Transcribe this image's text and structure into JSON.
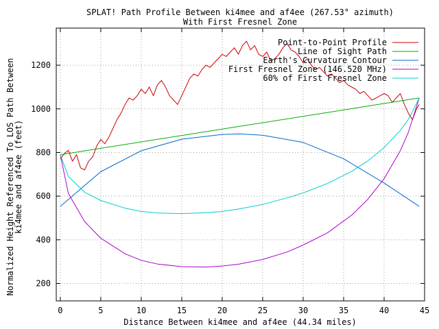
{
  "chart_data": {
    "type": "line",
    "title": "SPLAT! Path Profile Between ki4mee and af4ee (267.53° azimuth)",
    "subtitle": "With First Fresnel Zone",
    "xlabel": "Distance Between ki4mee and af4ee (44.34 miles)",
    "ylabel_line1": "Normalized Height Referenced To LOS Path Between",
    "ylabel_line2": "ki4mee and af4ee (feet)",
    "xlim": [
      -0.5,
      45
    ],
    "ylim": [
      120,
      1370
    ],
    "x_ticks": [
      0,
      5,
      10,
      15,
      20,
      25,
      30,
      35,
      40,
      45
    ],
    "y_ticks": [
      200,
      400,
      600,
      800,
      1000,
      1200
    ],
    "grid": true,
    "legend_position": "top-right",
    "series": [
      {
        "name": "Point-to-Point Profile",
        "color": "#cc0000",
        "x": [
          0,
          0.5,
          1,
          1.5,
          2,
          2.5,
          3,
          3.5,
          4,
          4.5,
          5,
          5.5,
          6,
          6.5,
          7,
          7.5,
          8,
          8.5,
          9,
          9.5,
          10,
          10.5,
          11,
          11.5,
          12,
          12.5,
          13,
          13.5,
          14,
          14.5,
          15,
          15.5,
          16,
          16.5,
          17,
          17.5,
          18,
          18.5,
          19,
          19.5,
          20,
          20.5,
          21,
          21.5,
          22,
          22.5,
          23,
          23.5,
          24,
          24.5,
          25,
          25.5,
          26,
          26.5,
          27,
          27.5,
          28,
          28.5,
          29,
          29.5,
          30,
          30.5,
          31,
          31.5,
          32,
          32.5,
          33,
          33.5,
          34,
          34.5,
          35,
          35.5,
          36,
          36.5,
          37,
          37.5,
          38,
          38.5,
          39,
          39.5,
          40,
          40.5,
          41,
          41.5,
          42,
          42.5,
          43,
          43.5,
          44,
          44.34
        ],
        "values": [
          770,
          795,
          810,
          760,
          790,
          730,
          720,
          760,
          780,
          830,
          860,
          840,
          870,
          910,
          950,
          980,
          1020,
          1050,
          1040,
          1060,
          1090,
          1070,
          1100,
          1060,
          1110,
          1130,
          1100,
          1060,
          1040,
          1020,
          1060,
          1100,
          1140,
          1160,
          1150,
          1180,
          1200,
          1190,
          1210,
          1230,
          1250,
          1240,
          1260,
          1280,
          1250,
          1290,
          1310,
          1270,
          1290,
          1250,
          1240,
          1260,
          1220,
          1230,
          1250,
          1280,
          1300,
          1270,
          1260,
          1240,
          1210,
          1230,
          1200,
          1180,
          1190,
          1170,
          1150,
          1160,
          1140,
          1120,
          1130,
          1110,
          1100,
          1090,
          1070,
          1080,
          1060,
          1040,
          1050,
          1060,
          1070,
          1060,
          1030,
          1050,
          1070,
          1020,
          980,
          950,
          1000,
          1020
        ]
      },
      {
        "name": "Line of Sight Path",
        "color": "#00aa00",
        "x": [
          0,
          44.34
        ],
        "values": [
          790,
          1050
        ]
      },
      {
        "name": "Earth's Curvature Contour",
        "color": "#0066cc",
        "x": [
          0,
          5,
          10,
          15,
          20,
          22.17,
          25,
          30,
          35,
          40,
          44.34
        ],
        "values": [
          553,
          712,
          808,
          861,
          883,
          885,
          879,
          846,
          771,
          660,
          553
        ]
      },
      {
        "name": "First Fresnel Zone (146.520 MHz)",
        "color": "#aa00cc",
        "x": [
          0,
          1,
          3,
          5,
          8,
          10,
          12,
          15,
          18,
          20,
          22,
          25,
          28,
          30,
          33,
          36,
          38,
          40,
          42,
          43,
          44,
          44.34
        ],
        "values": [
          790,
          612,
          484,
          407,
          336,
          306,
          289,
          277,
          275,
          280,
          288,
          310,
          344,
          376,
          432,
          513,
          586,
          680,
          808,
          893,
          1010,
          1050
        ]
      },
      {
        "name": "60% of First Fresnel Zone",
        "color": "#00cccc",
        "x": [
          0,
          1,
          3,
          5,
          8,
          10,
          12,
          15,
          18,
          20,
          22,
          25,
          28,
          30,
          33,
          36,
          38,
          40,
          42,
          43,
          44,
          44.34
        ],
        "values": [
          790,
          690,
          618,
          580,
          545,
          530,
          523,
          520,
          524,
          530,
          541,
          562,
          592,
          615,
          658,
          714,
          762,
          823,
          901,
          952,
          1024,
          1050
        ]
      }
    ]
  }
}
